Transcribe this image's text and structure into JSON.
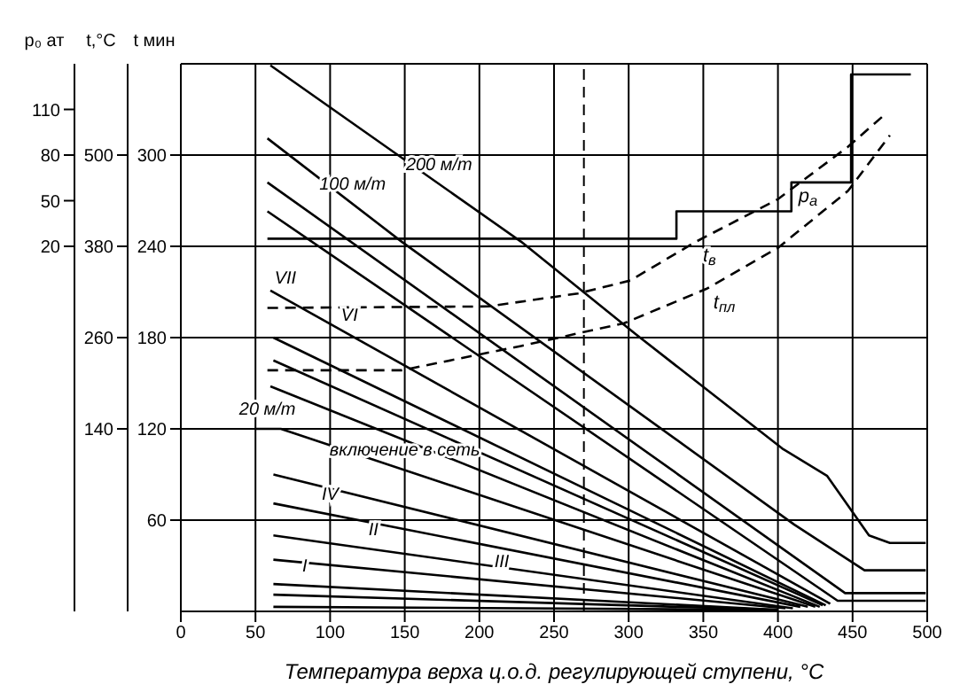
{
  "chart_data": {
    "type": "line",
    "xlabel": "Температура верха ц.о.д. регулирующей ступени, °C",
    "ylabel": "t мин",
    "y2label": "t,°C",
    "y3label": "p₀ ат",
    "xlim": [
      0,
      500
    ],
    "xticks": [
      0,
      50,
      100,
      150,
      200,
      250,
      300,
      350,
      400,
      450,
      500
    ],
    "ylim": [
      0,
      360
    ],
    "yticks": [
      60,
      120,
      180,
      240,
      300
    ],
    "y2lim": [
      -100,
      620
    ],
    "y2ticks": [
      140,
      260,
      380,
      500
    ],
    "y3lim": [
      -220,
      140
    ],
    "y3ticks": [
      20,
      50,
      80,
      110
    ],
    "grid": true,
    "legend": false,
    "marker": "none",
    "line_style": "solid",
    "series": [
      {
        "color": "#000000",
        "x": [
          60,
          228,
          305,
          403,
          433,
          461,
          475,
          499
        ],
        "values": [
          359,
          243,
          182,
          107,
          89,
          50,
          45,
          45
        ]
      },
      {
        "color": "#000000",
        "x": [
          58,
          148,
          411,
          458,
          499
        ],
        "values": [
          311,
          243,
          57,
          27,
          27
        ]
      },
      {
        "color": "#000000",
        "x": [
          58,
          445,
          499
        ],
        "values": [
          282,
          12,
          12
        ]
      },
      {
        "color": "#000000",
        "x": [
          58,
          440,
          499
        ],
        "values": [
          263,
          7,
          7
        ]
      },
      {
        "color": "#000000",
        "x": [
          60,
          435
        ],
        "values": [
          211,
          5
        ]
      },
      {
        "color": "#000000",
        "x": [
          62,
          432
        ],
        "values": [
          180,
          4
        ]
      },
      {
        "color": "#000000",
        "x": [
          62,
          430
        ],
        "values": [
          165,
          4
        ]
      },
      {
        "color": "#000000",
        "x": [
          60,
          428
        ],
        "values": [
          148,
          3
        ]
      },
      {
        "color": "#000000",
        "x": [
          50,
          67,
          425
        ],
        "values": [
          120,
          120,
          3
        ]
      },
      {
        "color": "#000000",
        "x": [
          62,
          420
        ],
        "values": [
          90,
          3
        ]
      },
      {
        "color": "#000000",
        "x": [
          62,
          415
        ],
        "values": [
          71,
          3
        ]
      },
      {
        "color": "#000000",
        "x": [
          62,
          410
        ],
        "values": [
          50,
          2
        ]
      },
      {
        "color": "#000000",
        "x": [
          62,
          405
        ],
        "values": [
          34,
          2
        ]
      },
      {
        "color": "#000000",
        "x": [
          62,
          400
        ],
        "values": [
          18,
          1
        ]
      },
      {
        "color": "#000000",
        "x": [
          62,
          400
        ],
        "values": [
          11,
          1
        ]
      },
      {
        "color": "#000000",
        "x": [
          62,
          400
        ],
        "values": [
          3,
          1
        ]
      },
      {
        "name": "t$_{в}$",
        "color": "#000000",
        "axis": "y2",
        "line_style": "dashed",
        "x": [
          58,
          206,
          266,
          301,
          345,
          400,
          447,
          472
        ],
        "values": [
          299,
          301,
          318,
          335,
          386,
          442,
          511,
          554
        ]
      },
      {
        "name": "t$_{пл}$",
        "color": "#000000",
        "axis": "y2",
        "line_style": "dashed",
        "x": [
          58,
          148,
          228,
          297,
          352,
          400,
          447,
          475
        ],
        "values": [
          217,
          217,
          249,
          279,
          324,
          378,
          453,
          526
        ]
      },
      {
        "name": "p$_{а}$",
        "color": "#000000",
        "axis": "y3",
        "type": "step",
        "x": [
          58,
          332,
          409,
          449,
          489
        ],
        "values": [
          25,
          43,
          62,
          133,
          133
        ]
      }
    ],
    "ref_lines": [
      {
        "axis": "x",
        "value": 270,
        "line_style": "dashed",
        "color": "#000000"
      }
    ],
    "annotations": [
      {
        "text": "200 м/т",
        "x": 173,
        "y": 281
      },
      {
        "text": "100 м/т",
        "x": 115,
        "y": 268
      },
      {
        "text": "VII",
        "x": 70,
        "y": 206
      },
      {
        "text": "VI",
        "x": 113,
        "y": 182
      },
      {
        "text": "20 м/т",
        "x": 58,
        "y": 120
      },
      {
        "text": "включение в сеть",
        "x": 150,
        "y": 93
      },
      {
        "text": "IV",
        "x": 100,
        "y": 64
      },
      {
        "text": "III",
        "x": 215,
        "y": 20
      },
      {
        "text": "II",
        "x": 129,
        "y": 41
      },
      {
        "text": "I",
        "x": 83,
        "y": 17
      }
    ]
  }
}
